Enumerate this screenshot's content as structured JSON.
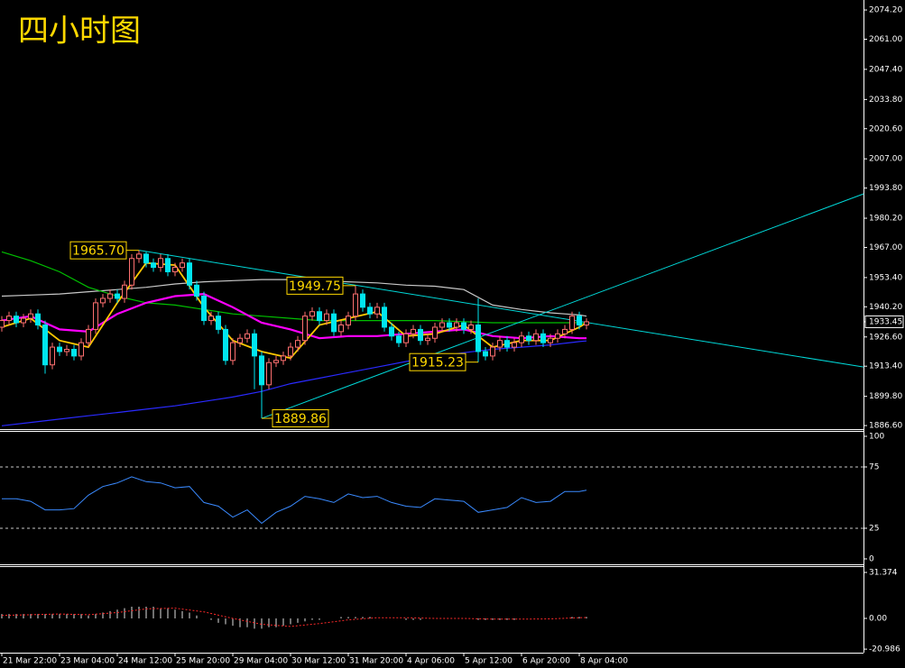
{
  "chart_data": [
    {
      "type": "candlestick",
      "title": "四小时图",
      "xticks": [
        {
          "value": 0,
          "label": "21 Mar 22:00"
        },
        {
          "value": 8,
          "label": "23 Mar 04:00"
        },
        {
          "value": 16,
          "label": "24 Mar 12:00"
        },
        {
          "value": 24,
          "label": "25 Mar 20:00"
        },
        {
          "value": 32,
          "label": "29 Mar 04:00"
        },
        {
          "value": 40,
          "label": "30 Mar 12:00"
        },
        {
          "value": 48,
          "label": "31 Mar 20:00"
        },
        {
          "value": 56,
          "label": "4 Apr 06:00"
        },
        {
          "value": 64,
          "label": "5 Apr 12:00"
        },
        {
          "value": 72,
          "label": "6 Apr 20:00"
        },
        {
          "value": 80,
          "label": "8 Apr 04:00"
        }
      ],
      "open": [
        1931,
        1934,
        1936,
        1933,
        1935,
        1937,
        1932,
        1914,
        1922,
        1920,
        1921,
        1918,
        1924,
        1930,
        1942,
        1944,
        1946,
        1944,
        1950,
        1962,
        1964,
        1960,
        1958,
        1962,
        1956,
        1958,
        1960,
        1950,
        1945,
        1934,
        1936,
        1930,
        1916,
        1924,
        1926,
        1928,
        1918,
        1905,
        1915,
        1916,
        1918,
        1922,
        1925,
        1936,
        1938,
        1934,
        1937,
        1929,
        1932,
        1936,
        1946,
        1940,
        1937,
        1940,
        1931,
        1927,
        1924,
        1928,
        1930,
        1925,
        1926,
        1931,
        1933,
        1931,
        1933,
        1930,
        1932,
        1920,
        1918,
        1922,
        1925,
        1922,
        1924,
        1927,
        1925,
        1928,
        1924,
        1926,
        1928,
        1930,
        1936,
        1932
      ],
      "high": [
        1936,
        1938,
        1938,
        1937,
        1939,
        1939,
        1934,
        1924,
        1924,
        1923,
        1923,
        1926,
        1932,
        1944,
        1946,
        1948,
        1948,
        1952,
        1964,
        1965.7,
        1965,
        1962,
        1964,
        1964,
        1960,
        1962,
        1962,
        1952,
        1947,
        1938,
        1938,
        1932,
        1926,
        1928,
        1930,
        1930,
        1920,
        1917,
        1918,
        1920,
        1924,
        1927,
        1938,
        1940,
        1940,
        1939,
        1939,
        1934,
        1938,
        1949.75,
        1948,
        1942,
        1942,
        1942,
        1933,
        1929,
        1930,
        1932,
        1932,
        1928,
        1933,
        1935,
        1935,
        1935,
        1935,
        1934,
        1944,
        1922,
        1924,
        1927,
        1927,
        1926,
        1929,
        1929,
        1930,
        1930,
        1928,
        1930,
        1932,
        1938,
        1938,
        1935
      ],
      "low": [
        1929,
        1932,
        1931,
        1931,
        1933,
        1930,
        1910,
        1912,
        1918,
        1918,
        1916,
        1916,
        1922,
        1928,
        1940,
        1942,
        1942,
        1942,
        1948,
        1960,
        1958,
        1956,
        1956,
        1954,
        1954,
        1956,
        1948,
        1943,
        1932,
        1932,
        1928,
        1914,
        1914,
        1922,
        1924,
        1903,
        1889.86,
        1903,
        1913,
        1914,
        1916,
        1920,
        1923,
        1934,
        1932,
        1932,
        1927,
        1927,
        1930,
        1934,
        1938,
        1935,
        1935,
        1929,
        1925,
        1922,
        1922,
        1926,
        1923,
        1923,
        1924,
        1929,
        1929,
        1929,
        1928,
        1928,
        1915.23,
        1916,
        1916,
        1920,
        1920,
        1920,
        1922,
        1923,
        1923,
        1922,
        1922,
        1924,
        1926,
        1928,
        1930,
        1930
      ],
      "close": [
        1934,
        1936,
        1933,
        1935,
        1937,
        1932,
        1914,
        1922,
        1920,
        1921,
        1918,
        1924,
        1930,
        1942,
        1944,
        1946,
        1944,
        1950,
        1962,
        1964,
        1960,
        1958,
        1962,
        1956,
        1958,
        1960,
        1950,
        1945,
        1934,
        1936,
        1930,
        1916,
        1924,
        1926,
        1928,
        1918,
        1905,
        1915,
        1916,
        1918,
        1922,
        1925,
        1936,
        1938,
        1934,
        1937,
        1929,
        1932,
        1936,
        1946,
        1940,
        1937,
        1940,
        1931,
        1927,
        1924,
        1928,
        1930,
        1925,
        1926,
        1931,
        1933,
        1931,
        1933,
        1930,
        1932,
        1920,
        1918,
        1922,
        1925,
        1922,
        1924,
        1927,
        1925,
        1928,
        1924,
        1926,
        1928,
        1930,
        1936,
        1932,
        1933.45
      ],
      "up_color": "#ff7070",
      "down_color": "#00e5ee",
      "series": [
        {
          "color": "#c8c8c8",
          "x": [
            0,
            4,
            8,
            12,
            16,
            20,
            24,
            28,
            32,
            36,
            40,
            44,
            48,
            52,
            56,
            60,
            64,
            68,
            72,
            76,
            80,
            81
          ],
          "values": [
            1945,
            1945.5,
            1946,
            1947,
            1948,
            1949,
            1950.5,
            1951.5,
            1952,
            1952.5,
            1952.5,
            1952,
            1951.5,
            1951,
            1950,
            1949.5,
            1948,
            1941,
            1939,
            1937.5,
            1936.5,
            1936
          ]
        },
        {
          "color": "#00c000",
          "x": [
            0,
            4,
            8,
            12,
            16,
            20,
            24,
            28,
            32,
            36,
            40,
            44,
            48,
            52,
            56,
            60,
            64,
            68,
            72,
            76,
            80,
            81
          ],
          "values": [
            1965,
            1961,
            1956,
            1949,
            1945,
            1942,
            1941,
            1939,
            1937,
            1936,
            1935,
            1934,
            1934,
            1934,
            1934,
            1934,
            1933.5,
            1933,
            1933,
            1933,
            1933,
            1932.5
          ]
        },
        {
          "color": "#2a2aff",
          "x": [
            0,
            4,
            8,
            12,
            16,
            20,
            24,
            28,
            32,
            36,
            40,
            44,
            48,
            52,
            56,
            60,
            64,
            68,
            72,
            76,
            80,
            81
          ],
          "values": [
            1886.5,
            1888,
            1889.5,
            1891,
            1892.5,
            1894,
            1895.5,
            1897.5,
            1899.5,
            1902,
            1905.5,
            1908,
            1910.5,
            1913,
            1915.5,
            1917.5,
            1919.5,
            1921,
            1922,
            1923,
            1924.5,
            1924.8
          ]
        },
        {
          "color": "#ff00ff",
          "x": [
            0,
            4,
            8,
            12,
            16,
            20,
            24,
            28,
            32,
            36,
            40,
            44,
            48,
            52,
            56,
            60,
            64,
            68,
            72,
            76,
            80,
            81
          ],
          "values": [
            1934,
            1936,
            1930,
            1929,
            1937,
            1942,
            1945,
            1946,
            1940,
            1933,
            1930,
            1926,
            1927,
            1927,
            1928,
            1929,
            1930,
            1927,
            1926,
            1927,
            1926,
            1926
          ]
        },
        {
          "color": "#ffc800",
          "x": [
            0,
            4,
            8,
            12,
            16,
            20,
            24,
            28,
            32,
            36,
            40,
            44,
            48,
            52,
            56,
            60,
            64,
            68,
            72,
            76,
            80,
            81
          ],
          "values": [
            1931,
            1935,
            1925,
            1922,
            1942,
            1960,
            1959,
            1940,
            1925,
            1920,
            1917,
            1932,
            1935,
            1938,
            1927,
            1928,
            1932,
            1922,
            1925,
            1925,
            1931,
            1933
          ]
        }
      ],
      "trendlines": [
        {
          "color": "#00d8d8",
          "x": [
            19,
            119.4
          ],
          "y": [
            1965.7,
            1913
          ]
        },
        {
          "color": "#00d8d8",
          "x": [
            36,
            119.4
          ],
          "y": [
            1889.86,
            1991.2
          ]
        }
      ],
      "annotations": [
        {
          "x": 19,
          "value": 1965.7,
          "label": "1965.70",
          "side": "left"
        },
        {
          "x": 49,
          "value": 1949.75,
          "label": "1949.75",
          "side": "left"
        },
        {
          "x": 66,
          "value": 1915.23,
          "label": "1915.23",
          "side": "left"
        },
        {
          "x": 36,
          "value": 1889.86,
          "label": "1889.86",
          "side": "right"
        }
      ],
      "last_price": {
        "value": 1933.45,
        "label": "1933.45"
      },
      "ylim": [
        1885.4,
        2078.7
      ],
      "yticks": [
        {
          "value": 2074.2,
          "label": "2074.20"
        },
        {
          "value": 2061,
          "label": "2061.00"
        },
        {
          "value": 2047.4,
          "label": "2047.40"
        },
        {
          "value": 2033.8,
          "label": "2033.80"
        },
        {
          "value": 2020.6,
          "label": "2020.60"
        },
        {
          "value": 2007,
          "label": "2007.00"
        },
        {
          "value": 1993.8,
          "label": "1993.80"
        },
        {
          "value": 1980.2,
          "label": "1980.20"
        },
        {
          "value": 1967,
          "label": "1967.00"
        },
        {
          "value": 1953.4,
          "label": "1953.40"
        },
        {
          "value": 1940.2,
          "label": "1940.20"
        },
        {
          "value": 1926.6,
          "label": "1926.60"
        },
        {
          "value": 1913.4,
          "label": "1913.40"
        },
        {
          "value": 1899.8,
          "label": "1899.80"
        },
        {
          "value": 1886.6,
          "label": "1886.60"
        }
      ]
    },
    {
      "type": "line",
      "series": [
        {
          "color": "#3a8aff",
          "x": [
            0,
            2,
            4,
            6,
            8,
            10,
            12,
            14,
            16,
            18,
            20,
            22,
            24,
            26,
            28,
            30,
            32,
            34,
            36,
            38,
            40,
            42,
            44,
            46,
            48,
            50,
            52,
            54,
            56,
            58,
            60,
            62,
            64,
            66,
            68,
            70,
            72,
            74,
            76,
            78,
            80,
            81
          ],
          "values": [
            49,
            49,
            47,
            40,
            40,
            41,
            52,
            59,
            62,
            67,
            63,
            62,
            58,
            59,
            46,
            43,
            34,
            40,
            29,
            38,
            43,
            51,
            49,
            46,
            53,
            50,
            51,
            46,
            43,
            42,
            49,
            48,
            47,
            38,
            40,
            42,
            50,
            46,
            47,
            55,
            55,
            56
          ]
        }
      ],
      "levels": [
        75,
        25
      ],
      "ylim": [
        -3.7,
        104.4
      ],
      "yticks": [
        100,
        75,
        25,
        0
      ]
    },
    {
      "type": "histogram",
      "color": "#e0e0e0",
      "values": [
        3,
        3,
        3,
        3,
        3,
        3,
        3,
        3,
        3,
        3,
        3,
        3,
        2,
        3,
        4,
        5,
        6,
        7,
        8,
        8,
        8,
        8,
        7,
        7,
        6,
        5,
        4,
        2,
        0,
        -1,
        -3,
        -4,
        -5,
        -6,
        -6,
        -7,
        -7,
        -6,
        -6,
        -5,
        -4,
        -3,
        -2,
        -1,
        -1,
        0,
        0,
        1,
        1,
        1,
        1,
        1,
        0,
        0,
        0,
        0,
        -1,
        -1,
        -1,
        0,
        0,
        0,
        0,
        0,
        0,
        0,
        -1,
        -1,
        -1,
        -1,
        -1,
        -1,
        0,
        0,
        0,
        0,
        0,
        0,
        0,
        1,
        1,
        1
      ],
      "signal": {
        "color": "#ff2a2a",
        "x": [
          0,
          4,
          8,
          12,
          16,
          20,
          24,
          28,
          32,
          36,
          40,
          44,
          48,
          52,
          56,
          60,
          64,
          68,
          72,
          76,
          80,
          81
        ],
        "values": [
          2,
          2.5,
          3,
          2.5,
          4,
          6.5,
          7,
          4.5,
          0,
          -4,
          -5.5,
          -3.5,
          -1,
          0.5,
          0.5,
          0,
          0,
          -0.5,
          -0.5,
          -0.3,
          0.5,
          0.6
        ]
      },
      "ylim": [
        -23.4,
        34.45
      ],
      "yticks": [
        31.374,
        {
          "value": 0,
          "label": "0.00"
        },
        -20.986
      ]
    }
  ]
}
